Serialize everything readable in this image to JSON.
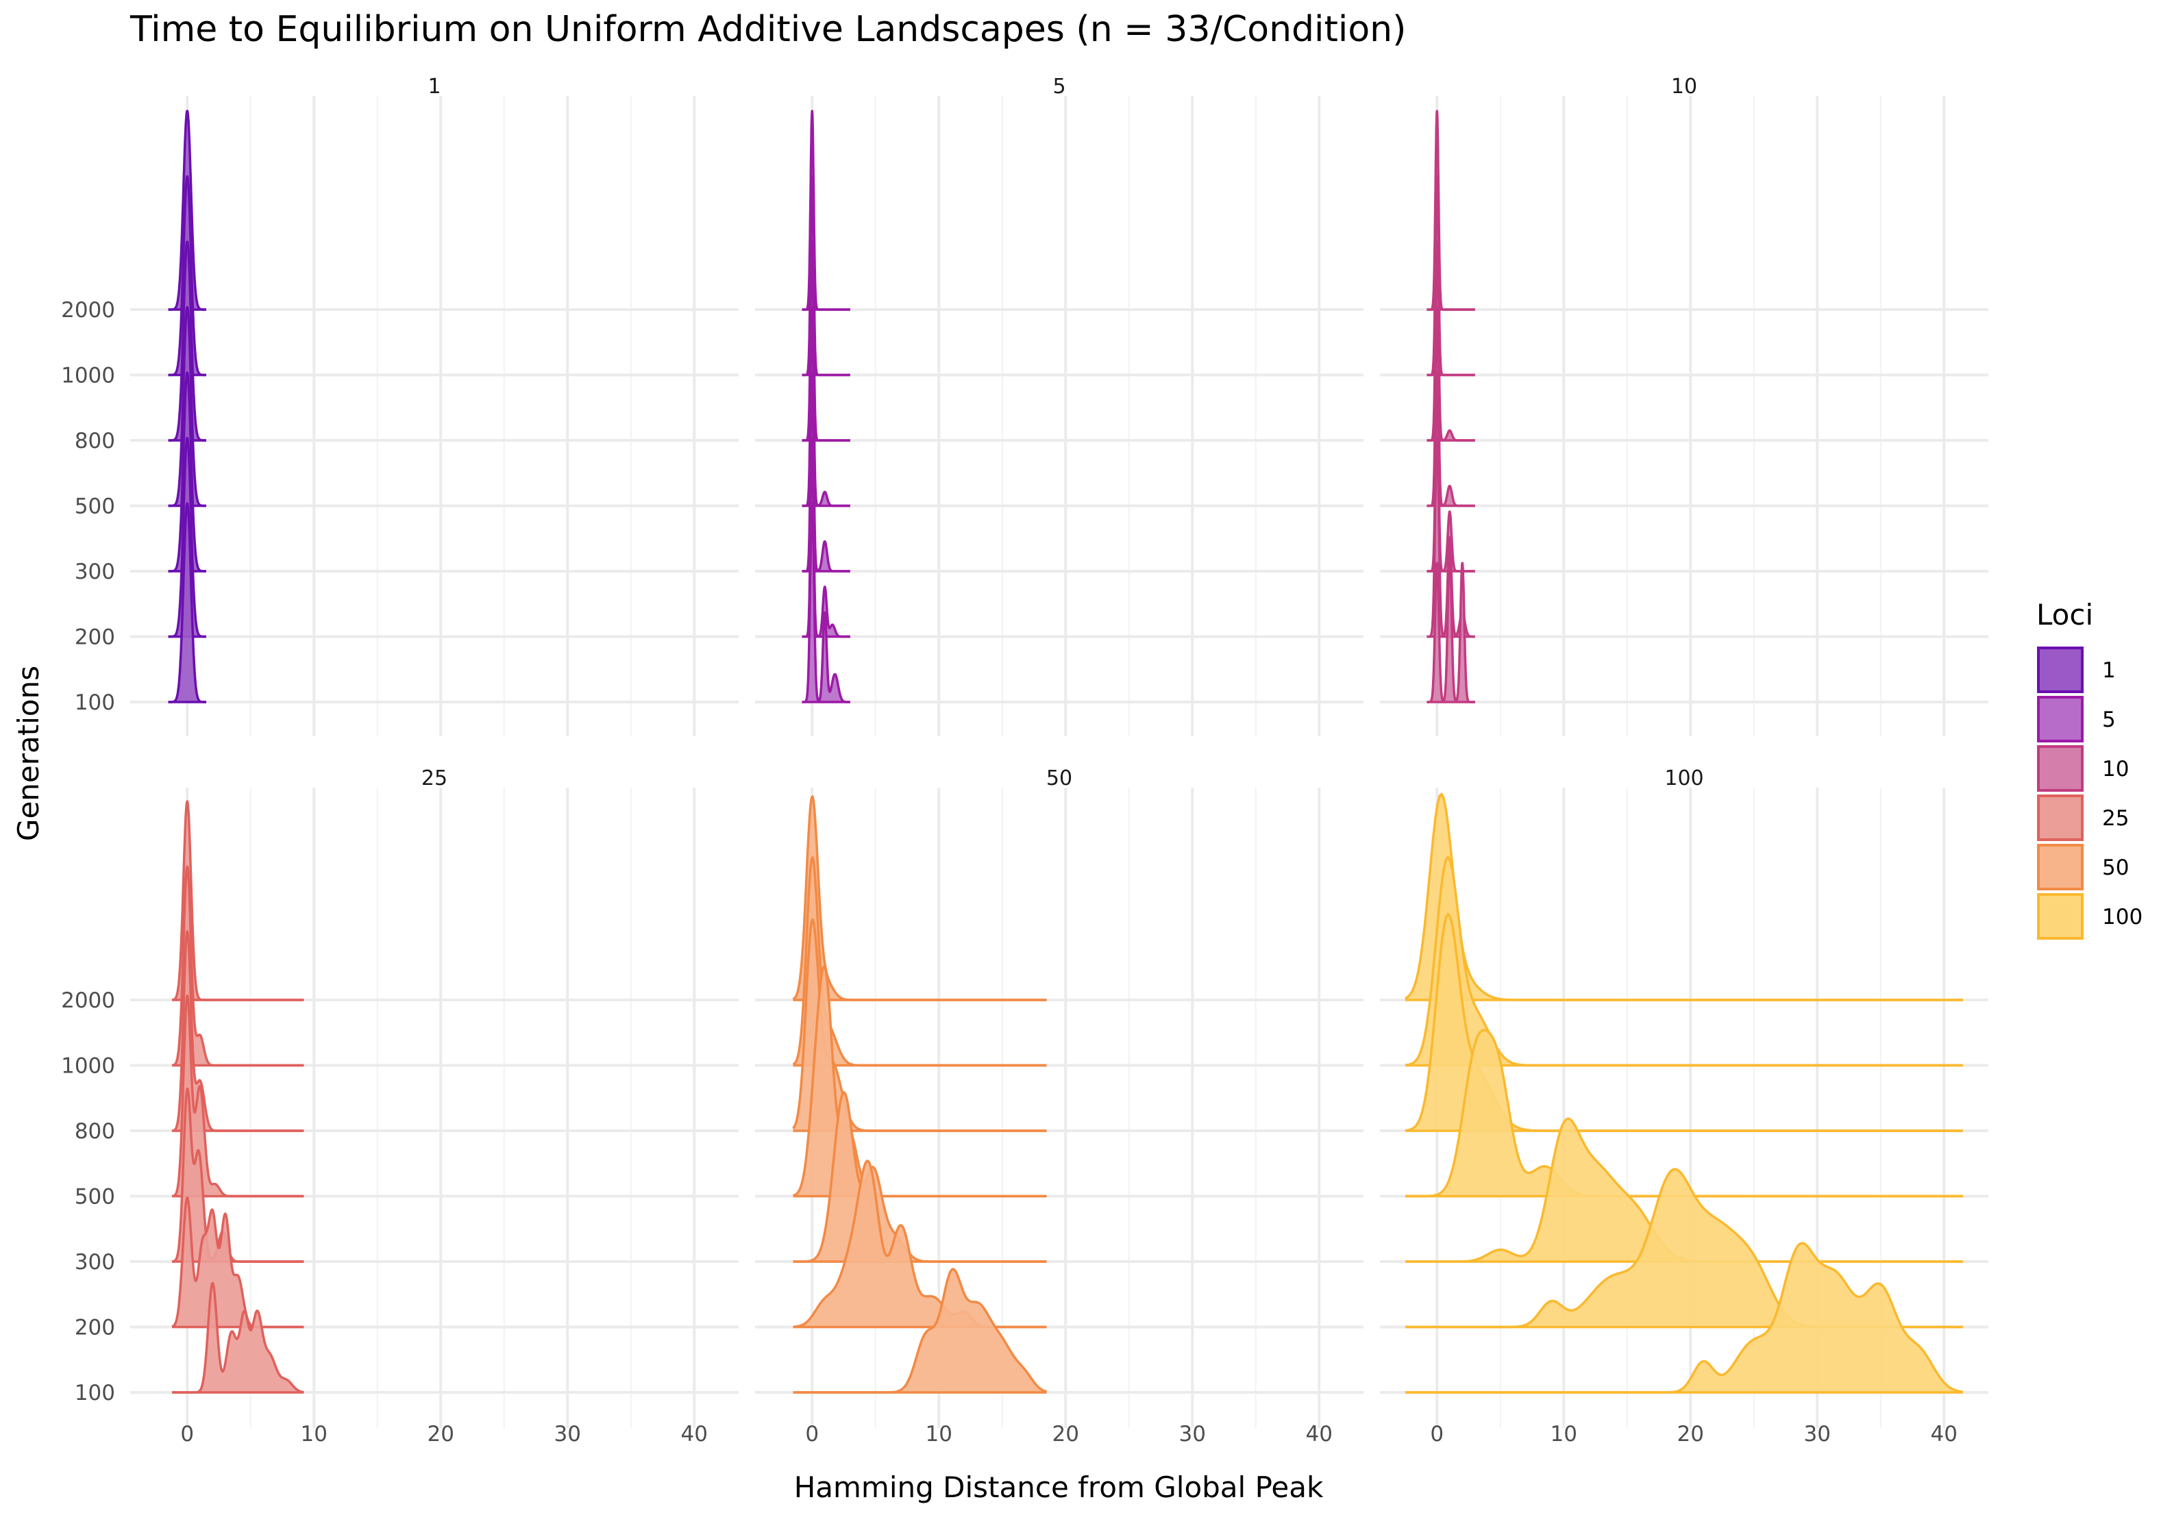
{
  "chart_data": {
    "type": "ridgeline",
    "title": "Time to Equilibrium on Uniform Additive Landscapes (n = 33/Condition)",
    "xlabel": "Hamming Distance from Global Peak",
    "ylabel": "Generations",
    "x_ticks": [
      0,
      10,
      20,
      30,
      40
    ],
    "y_ticks": [
      "100",
      "200",
      "300",
      "500",
      "800",
      "1000",
      "2000"
    ],
    "legend": {
      "title": "Loci",
      "position": "right",
      "items": [
        {
          "label": "1",
          "fill": "#9b59c7",
          "stroke": "#6a0fb0"
        },
        {
          "label": "5",
          "fill": "#b86cc9",
          "stroke": "#9c1aa6"
        },
        {
          "label": "10",
          "fill": "#d47fab",
          "stroke": "#c23b81"
        },
        {
          "label": "25",
          "fill": "#eb9d98",
          "stroke": "#e0615c"
        },
        {
          "label": "50",
          "fill": "#f7b48a",
          "stroke": "#f28a45"
        },
        {
          "label": "100",
          "fill": "#fdd67a",
          "stroke": "#fbb92f"
        }
      ]
    },
    "panels": [
      {
        "label": "1",
        "loci": 1,
        "x_range": [
          -1.5,
          1.5
        ],
        "ridges": [
          {
            "generations": "100",
            "peaks": [
              [
                0,
                0.3,
                1.0
              ]
            ]
          },
          {
            "generations": "200",
            "peaks": [
              [
                0,
                0.3,
                1.0
              ]
            ]
          },
          {
            "generations": "300",
            "peaks": [
              [
                0,
                0.3,
                1.0
              ]
            ]
          },
          {
            "generations": "500",
            "peaks": [
              [
                0,
                0.3,
                1.0
              ]
            ]
          },
          {
            "generations": "800",
            "peaks": [
              [
                0,
                0.3,
                1.0
              ]
            ]
          },
          {
            "generations": "1000",
            "peaks": [
              [
                0,
                0.3,
                1.0
              ]
            ]
          },
          {
            "generations": "2000",
            "peaks": [
              [
                0,
                0.3,
                1.0
              ]
            ]
          }
        ]
      },
      {
        "label": "5",
        "loci": 5,
        "x_range": [
          -0.8,
          3.0
        ],
        "ridges": [
          {
            "generations": "100",
            "peaks": [
              [
                0,
                0.15,
                1.0
              ],
              [
                1.0,
                0.15,
                0.45
              ],
              [
                1.8,
                0.25,
                0.14
              ]
            ]
          },
          {
            "generations": "200",
            "peaks": [
              [
                0,
                0.12,
                1.0
              ],
              [
                1.0,
                0.15,
                0.25
              ],
              [
                1.6,
                0.2,
                0.06
              ]
            ]
          },
          {
            "generations": "300",
            "peaks": [
              [
                0,
                0.12,
                1.0
              ],
              [
                1.0,
                0.18,
                0.15
              ]
            ]
          },
          {
            "generations": "500",
            "peaks": [
              [
                0,
                0.12,
                1.0
              ],
              [
                1.0,
                0.18,
                0.07
              ]
            ]
          },
          {
            "generations": "800",
            "peaks": [
              [
                0,
                0.12,
                1.0
              ]
            ]
          },
          {
            "generations": "1000",
            "peaks": [
              [
                0,
                0.12,
                1.0
              ]
            ]
          },
          {
            "generations": "2000",
            "peaks": [
              [
                0,
                0.12,
                1.0
              ]
            ]
          }
        ]
      },
      {
        "label": "10",
        "loci": 10,
        "x_range": [
          -0.8,
          3.0
        ],
        "ridges": [
          {
            "generations": "100",
            "peaks": [
              [
                0,
                0.15,
                0.7
              ],
              [
                1.0,
                0.15,
                0.75
              ],
              [
                2.0,
                0.15,
                0.7
              ]
            ]
          },
          {
            "generations": "200",
            "peaks": [
              [
                0,
                0.15,
                1.0
              ],
              [
                1.0,
                0.15,
                0.5
              ],
              [
                2.0,
                0.2,
                0.12
              ]
            ]
          },
          {
            "generations": "300",
            "peaks": [
              [
                0,
                0.12,
                1.0
              ],
              [
                1.0,
                0.15,
                0.3
              ]
            ]
          },
          {
            "generations": "500",
            "peaks": [
              [
                0,
                0.12,
                1.0
              ],
              [
                1.0,
                0.18,
                0.1
              ]
            ]
          },
          {
            "generations": "800",
            "peaks": [
              [
                0,
                0.12,
                1.0
              ],
              [
                1.0,
                0.18,
                0.05
              ]
            ]
          },
          {
            "generations": "1000",
            "peaks": [
              [
                0,
                0.12,
                1.0
              ]
            ]
          },
          {
            "generations": "2000",
            "peaks": [
              [
                0,
                0.12,
                1.0
              ]
            ]
          }
        ]
      },
      {
        "label": "25",
        "loci": 25,
        "x_range": [
          -1.2,
          9.2
        ],
        "ridges": [
          {
            "generations": "100",
            "peaks": [
              [
                2.0,
                0.35,
                0.55
              ],
              [
                3.5,
                0.4,
                0.3
              ],
              [
                4.5,
                0.35,
                0.38
              ],
              [
                5.5,
                0.4,
                0.38
              ],
              [
                6.5,
                0.5,
                0.18
              ],
              [
                7.8,
                0.5,
                0.06
              ]
            ]
          },
          {
            "generations": "200",
            "peaks": [
              [
                0,
                0.35,
                0.65
              ],
              [
                1.2,
                0.35,
                0.4
              ],
              [
                2.0,
                0.35,
                0.55
              ],
              [
                3.0,
                0.35,
                0.55
              ],
              [
                4.0,
                0.4,
                0.25
              ]
            ]
          },
          {
            "generations": "300",
            "peaks": [
              [
                0,
                0.3,
                0.85
              ],
              [
                0.9,
                0.35,
                0.55
              ],
              [
                2.8,
                0.35,
                0.15
              ]
            ]
          },
          {
            "generations": "500",
            "peaks": [
              [
                0,
                0.3,
                1.0
              ],
              [
                1.0,
                0.35,
                0.55
              ],
              [
                2.2,
                0.35,
                0.06
              ]
            ]
          },
          {
            "generations": "800",
            "peaks": [
              [
                0,
                0.3,
                1.0
              ],
              [
                1.0,
                0.35,
                0.25
              ]
            ]
          },
          {
            "generations": "1000",
            "peaks": [
              [
                0,
                0.3,
                1.0
              ],
              [
                1.0,
                0.3,
                0.15
              ]
            ]
          },
          {
            "generations": "2000",
            "peaks": [
              [
                0,
                0.3,
                1.0
              ]
            ]
          }
        ]
      },
      {
        "label": "50",
        "loci": 50,
        "x_range": [
          -1.5,
          18.5
        ],
        "ridges": [
          {
            "generations": "100",
            "peaks": [
              [
                9.0,
                0.8,
                0.28
              ],
              [
                11.0,
                0.8,
                0.55
              ],
              [
                13.0,
                1.0,
                0.4
              ],
              [
                15.0,
                1.0,
                0.22
              ],
              [
                16.8,
                0.7,
                0.07
              ]
            ]
          },
          {
            "generations": "200",
            "peaks": [
              [
                1.0,
                0.8,
                0.12
              ],
              [
                3.0,
                0.9,
                0.3
              ],
              [
                4.5,
                0.8,
                0.75
              ],
              [
                7.0,
                0.8,
                0.5
              ],
              [
                9.5,
                1.0,
                0.15
              ],
              [
                12.0,
                0.6,
                0.07
              ]
            ]
          },
          {
            "generations": "300",
            "peaks": [
              [
                2.5,
                0.8,
                0.85
              ],
              [
                4.8,
                0.7,
                0.45
              ],
              [
                6.5,
                0.8,
                0.12
              ]
            ]
          },
          {
            "generations": "500",
            "peaks": [
              [
                0.5,
                0.6,
                0.7
              ],
              [
                1.2,
                0.5,
                0.7
              ],
              [
                2.8,
                0.7,
                0.35
              ]
            ]
          },
          {
            "generations": "800",
            "peaks": [
              [
                0,
                0.5,
                1.0
              ],
              [
                1.5,
                0.8,
                0.35
              ]
            ]
          },
          {
            "generations": "1000",
            "peaks": [
              [
                0,
                0.45,
                1.0
              ],
              [
                1.2,
                0.7,
                0.2
              ]
            ]
          },
          {
            "generations": "2000",
            "peaks": [
              [
                0,
                0.45,
                1.0
              ],
              [
                1.0,
                0.6,
                0.1
              ]
            ]
          }
        ]
      },
      {
        "label": "100",
        "loci": 100,
        "x_range": [
          -2.5,
          41.5
        ],
        "ridges": [
          {
            "generations": "100",
            "peaks": [
              [
                21.0,
                0.8,
                0.15
              ],
              [
                25.0,
                1.5,
                0.25
              ],
              [
                28.5,
                1.3,
                0.65
              ],
              [
                31.5,
                1.5,
                0.55
              ],
              [
                35.0,
                1.3,
                0.5
              ],
              [
                38.0,
                1.2,
                0.2
              ]
            ]
          },
          {
            "generations": "200",
            "peaks": [
              [
                9.0,
                0.9,
                0.12
              ],
              [
                14.0,
                2.0,
                0.25
              ],
              [
                18.5,
                1.6,
                0.7
              ],
              [
                22.0,
                1.8,
                0.45
              ],
              [
                25.0,
                1.5,
                0.25
              ]
            ]
          },
          {
            "generations": "300",
            "peaks": [
              [
                5.0,
                1.0,
                0.06
              ],
              [
                10.0,
                1.2,
                0.6
              ],
              [
                12.5,
                1.5,
                0.4
              ],
              [
                15.5,
                1.6,
                0.25
              ]
            ]
          },
          {
            "generations": "500",
            "peaks": [
              [
                3.0,
                1.0,
                0.65
              ],
              [
                4.8,
                1.0,
                0.6
              ],
              [
                8.5,
                1.2,
                0.15
              ]
            ]
          },
          {
            "generations": "800",
            "peaks": [
              [
                0.8,
                0.9,
                1.0
              ],
              [
                3.0,
                1.4,
                0.3
              ]
            ]
          },
          {
            "generations": "1000",
            "peaks": [
              [
                0.8,
                0.9,
                1.0
              ],
              [
                3.0,
                1.2,
                0.25
              ]
            ]
          },
          {
            "generations": "2000",
            "peaks": [
              [
                0.3,
                0.9,
                1.0
              ],
              [
                2.0,
                1.2,
                0.1
              ]
            ]
          }
        ]
      }
    ]
  }
}
